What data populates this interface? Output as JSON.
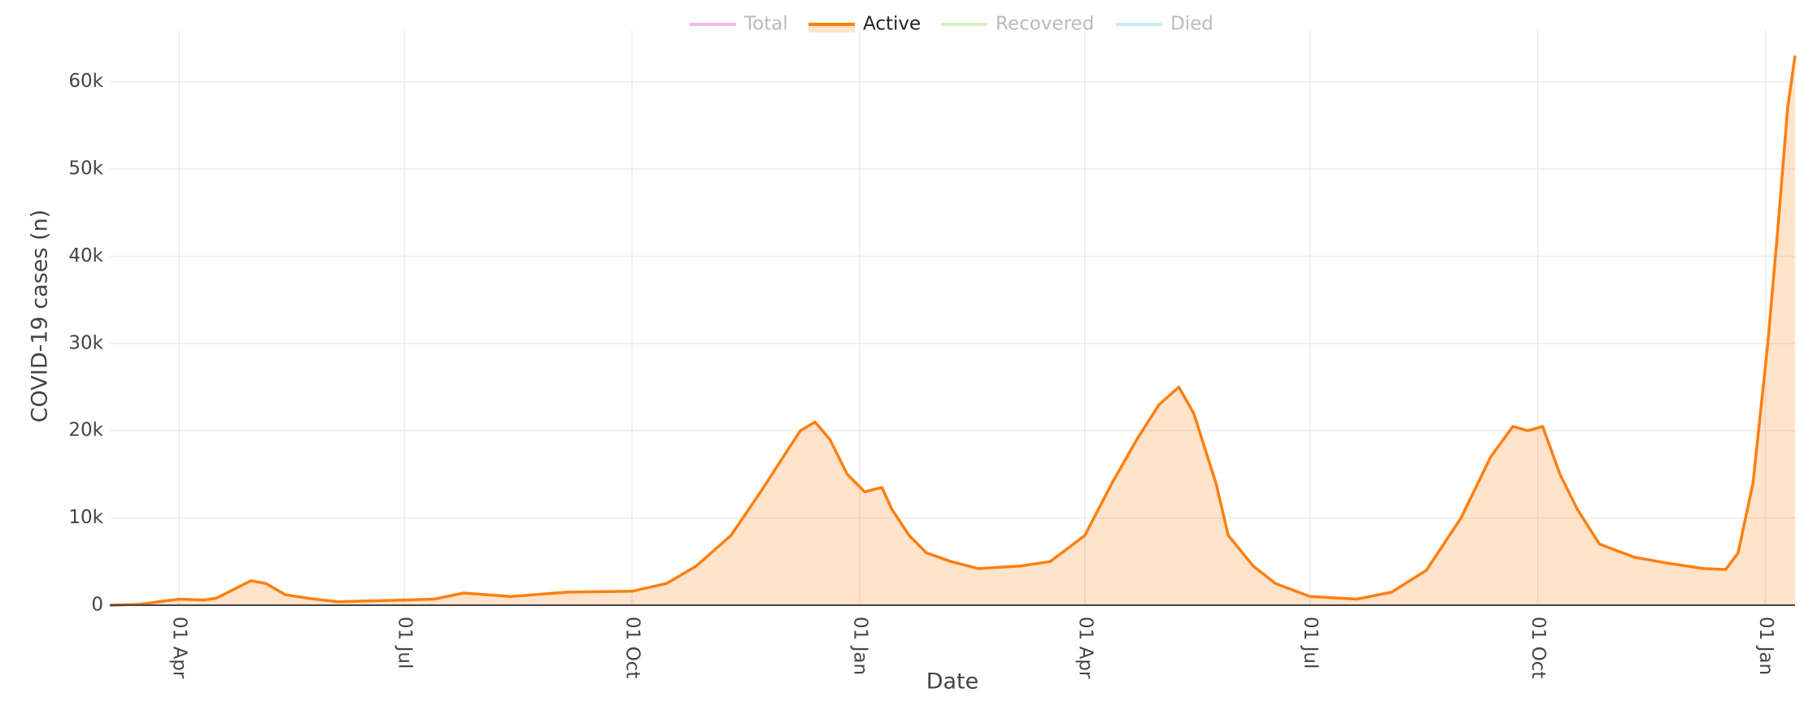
{
  "chart_data": {
    "type": "area",
    "y_label": "COVID-19 cases (n)",
    "x_label": "Date",
    "legend": "top",
    "grid": true,
    "xlim": [
      -28,
      653
    ],
    "xticks": [
      {
        "value": 0,
        "label": "01 Apr"
      },
      {
        "value": 91,
        "label": "01 Jul"
      },
      {
        "value": 183,
        "label": "01 Oct"
      },
      {
        "value": 275,
        "label": "01 Jan"
      },
      {
        "value": 366,
        "label": "01 Apr"
      },
      {
        "value": 457,
        "label": "01 Jul"
      },
      {
        "value": 549,
        "label": "01 Oct"
      },
      {
        "value": 641,
        "label": "01 Jan"
      }
    ],
    "ylim": [
      0,
      65000
    ],
    "yticks": [
      0,
      {
        "value": 10000,
        "label": "10k"
      },
      {
        "value": 20000,
        "label": "20k"
      },
      {
        "value": 30000,
        "label": "30k"
      },
      {
        "value": 40000,
        "label": "40k"
      },
      {
        "value": 50000,
        "label": "50k"
      },
      {
        "value": 60000,
        "label": "60k"
      }
    ],
    "x": [
      -28,
      -16,
      0,
      10,
      15,
      22,
      29,
      35,
      43,
      52,
      64,
      91,
      103,
      115,
      134,
      157,
      183,
      197,
      209,
      223,
      235,
      251,
      257,
      263,
      270,
      277,
      284,
      288,
      295,
      302,
      312,
      323,
      340,
      352,
      366,
      377,
      387,
      396,
      404,
      410,
      419,
      424,
      434,
      443,
      457,
      476,
      490,
      504,
      518,
      530,
      539,
      545,
      551,
      558,
      565,
      574,
      588,
      602,
      616,
      625,
      630,
      636,
      642,
      646,
      650,
      653
    ],
    "series": [
      {
        "name": "Total",
        "color": "#e377c2",
        "hidden": true
      },
      {
        "name": "Active",
        "color": "#ff7f0e",
        "values": [
          0,
          100,
          700,
          600,
          800,
          1800,
          2800,
          2500,
          1200,
          800,
          400,
          600,
          700,
          1400,
          1000,
          1500,
          1600,
          2500,
          4500,
          8000,
          13000,
          20000,
          21000,
          19000,
          15000,
          13000,
          13500,
          11000,
          8000,
          6000,
          5000,
          4200,
          4500,
          5000,
          8000,
          14000,
          19000,
          23000,
          25000,
          22000,
          14000,
          8000,
          4500,
          2500,
          1000,
          700,
          1500,
          4000,
          10000,
          17000,
          20500,
          20000,
          20500,
          15000,
          11000,
          7000,
          5500,
          4800,
          4200,
          4100,
          6000,
          14000,
          30000,
          43000,
          57000,
          63000
        ]
      },
      {
        "name": "Recovered",
        "color": "#b5de7f",
        "hidden": true
      },
      {
        "name": "Died",
        "color": "#8fd8e8",
        "hidden": true
      }
    ]
  }
}
